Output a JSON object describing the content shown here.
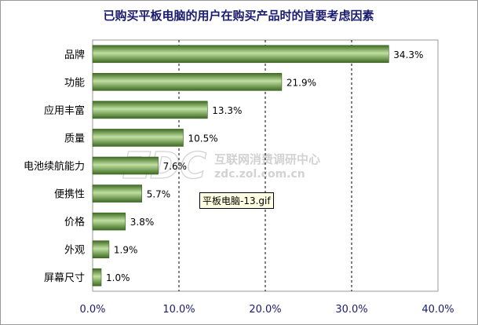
{
  "chart_data": {
    "type": "bar",
    "orientation": "horizontal",
    "title": "已购买平板电脑的用户在购买产品时的首要考虑因素",
    "categories": [
      "品牌",
      "功能",
      "应用丰富",
      "质量",
      "电池续航能力",
      "便携性",
      "价格",
      "外观",
      "屏幕尺寸"
    ],
    "values": [
      34.3,
      21.9,
      13.3,
      10.5,
      7.6,
      5.7,
      3.8,
      1.9,
      1.0
    ],
    "value_labels": [
      "34.3%",
      "21.9%",
      "13.3%",
      "10.5%",
      "7.6%",
      "5.7%",
      "3.8%",
      "1.9%",
      "1.0%"
    ],
    "xlim": [
      0,
      40
    ],
    "xticks": [
      0,
      10,
      20,
      30,
      40
    ],
    "xtick_labels": [
      "0.0%",
      "10.0%",
      "20.0%",
      "30.0%",
      "40.0%"
    ],
    "grid": "vertical-dashed",
    "bar_color": "#5e8c3a"
  },
  "watermark": {
    "logo_text": "ZDC",
    "cn_text": "互联网消费调研中心",
    "url_text": "zdc.zol.com.cn"
  },
  "tooltip": "平板电脑-13.gif",
  "colors": {
    "title": "#1a1a6e",
    "bar_dark": "#3f6b22",
    "bar_light": "#bfe0a0",
    "axis_text": "#1a1a6e",
    "plot_border": "#9a9a9a",
    "grid": "#000000"
  }
}
